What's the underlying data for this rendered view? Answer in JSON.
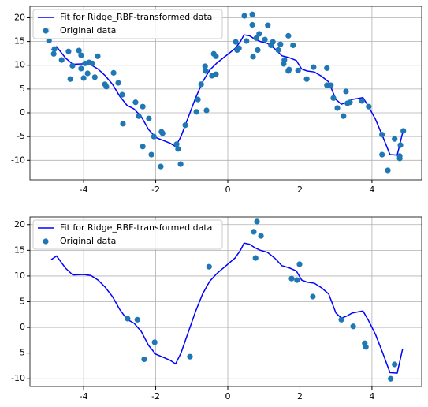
{
  "chart_data": [
    {
      "type": "scatter",
      "xlim": [
        -5.49,
        5.38
      ],
      "ylim": [
        -14.1,
        22.4
      ],
      "xticks": [
        -4,
        -2,
        0,
        2,
        4
      ],
      "yticks": [
        -10,
        -5,
        0,
        5,
        10,
        15,
        20
      ],
      "grid": true,
      "legend": "upper left",
      "series": [
        {
          "name": "Fit for Ridge_RBF-transformed data",
          "type": "line",
          "color": "#0000ff",
          "x": [
            -4.9,
            -4.75,
            -4.5,
            -4.3,
            -4,
            -3.8,
            -3.6,
            -3.4,
            -3.2,
            -3,
            -2.8,
            -2.6,
            -2.4,
            -2.2,
            -2,
            -1.8,
            -1.6,
            -1.45,
            -1.3,
            -1.1,
            -0.9,
            -0.7,
            -0.5,
            -0.3,
            0,
            0.2,
            0.35,
            0.45,
            0.6,
            0.75,
            0.9,
            1.1,
            1.3,
            1.5,
            1.7,
            1.9,
            2.05,
            2.2,
            2.4,
            2.6,
            2.8,
            3,
            3.15,
            3.3,
            3.45,
            3.6,
            3.75,
            3.9,
            4.1,
            4.3,
            4.5,
            4.7,
            4.85
          ],
          "values": [
            13.2,
            13.9,
            11.5,
            10.2,
            10.3,
            10.1,
            9.2,
            7.8,
            6,
            3.5,
            1.6,
            0.8,
            -0.8,
            -3.5,
            -5.2,
            -5.8,
            -6.4,
            -7.1,
            -5,
            -1,
            3,
            6.5,
            9,
            10.5,
            12.3,
            13.5,
            15,
            16.4,
            16.2,
            15.5,
            15,
            14.6,
            13.5,
            12,
            11.6,
            11,
            9.2,
            8.8,
            8.6,
            7.7,
            6.5,
            2.8,
            1.8,
            2.2,
            2.8,
            3,
            3.2,
            1.4,
            -1.4,
            -5,
            -8.8,
            -8.9,
            -4.2
          ]
        },
        {
          "name": "Original data",
          "type": "scatter",
          "color": "#1f77b4",
          "x": [
            -4.96,
            -5.0,
            -4.83,
            -4.81,
            -4.61,
            -4.42,
            -4.37,
            -4.31,
            -4.13,
            -4.07,
            -4.07,
            -4.0,
            -3.96,
            -3.89,
            -3.85,
            -3.76,
            -3.69,
            -3.61,
            -3.41,
            -3.37,
            -3.17,
            -3.04,
            -2.93,
            -2.91,
            -2.56,
            -2.47,
            -2.36,
            -2.36,
            -2.19,
            -2.12,
            -2.05,
            -1.86,
            -1.84,
            -1.81,
            -1.42,
            -1.38,
            -1.31,
            -1.18,
            -0.87,
            -0.83,
            -0.74,
            -0.63,
            -0.61,
            -0.59,
            -0.44,
            -0.39,
            -0.33,
            -0.33,
            0.22,
            0.26,
            0.31,
            0.46,
            0.52,
            0.68,
            0.68,
            0.7,
            0.79,
            0.83,
            0.87,
            1.03,
            1.11,
            1.2,
            1.25,
            1.4,
            1.46,
            1.55,
            1.57,
            1.68,
            1.68,
            1.7,
            1.81,
            1.95,
            2.19,
            2.38,
            2.75,
            2.75,
            2.86,
            2.93,
            3.04,
            3.21,
            3.28,
            3.32,
            3.39,
            3.72,
            3.91,
            4.28,
            4.28,
            4.44,
            4.63,
            4.77,
            4.77,
            4.79,
            4.87
          ],
          "values": [
            15.2,
            17.4,
            12.4,
            13.4,
            11.1,
            12.9,
            7.1,
            9.9,
            13.1,
            12.1,
            9.3,
            7.3,
            10.4,
            8.3,
            10.6,
            10.4,
            7.5,
            11.9,
            6.0,
            5.5,
            8.4,
            6.3,
            3.8,
            -2.3,
            2.2,
            -0.7,
            1.3,
            -7.1,
            -1.2,
            -8.8,
            -5.0,
            -11.3,
            -4.0,
            -4.3,
            -6.6,
            -7.6,
            -10.8,
            -2.6,
            0.2,
            2.8,
            6.0,
            9.8,
            8.8,
            0.5,
            7.8,
            12.4,
            11.9,
            8.1,
            14.9,
            13.2,
            13.6,
            20.4,
            15.1,
            20.7,
            18.5,
            11.8,
            15.7,
            13.2,
            16.6,
            15.4,
            18.4,
            14.2,
            14.9,
            13.2,
            14.4,
            10.3,
            11.1,
            16.2,
            8.8,
            9.1,
            14.2,
            8.9,
            7.1,
            9.6,
            9.4,
            5.8,
            5.8,
            3.1,
            1.0,
            -0.7,
            4.5,
            2.0,
            2.2,
            2.5,
            1.3,
            -4.6,
            -8.8,
            -12.1,
            -5.5,
            -9.1,
            -9.6,
            -6.8,
            -3.8
          ]
        }
      ]
    },
    {
      "type": "scatter",
      "xlim": [
        -5.49,
        5.38
      ],
      "ylim": [
        -11.5,
        21.5
      ],
      "xticks": [
        -4,
        -2,
        0,
        2,
        4
      ],
      "yticks": [
        -10,
        -5,
        0,
        5,
        10,
        15,
        20
      ],
      "grid": true,
      "legend": "upper left",
      "series": [
        {
          "name": "Fit for Ridge_RBF-transformed data",
          "type": "line",
          "color": "#0000ff",
          "x": [
            -4.9,
            -4.75,
            -4.5,
            -4.3,
            -4,
            -3.8,
            -3.6,
            -3.4,
            -3.2,
            -3,
            -2.8,
            -2.6,
            -2.4,
            -2.2,
            -2,
            -1.8,
            -1.6,
            -1.45,
            -1.3,
            -1.1,
            -0.9,
            -0.7,
            -0.5,
            -0.3,
            0,
            0.2,
            0.35,
            0.45,
            0.6,
            0.75,
            0.9,
            1.1,
            1.3,
            1.5,
            1.7,
            1.9,
            2.05,
            2.2,
            2.4,
            2.6,
            2.8,
            3,
            3.15,
            3.3,
            3.45,
            3.6,
            3.75,
            3.9,
            4.1,
            4.3,
            4.5,
            4.7,
            4.85
          ],
          "values": [
            13.2,
            13.9,
            11.5,
            10.2,
            10.3,
            10.1,
            9.2,
            7.8,
            6,
            3.5,
            1.6,
            0.8,
            -0.8,
            -3.5,
            -5.2,
            -5.8,
            -6.4,
            -7.1,
            -5,
            -1,
            3,
            6.5,
            9,
            10.5,
            12.3,
            13.5,
            15,
            16.4,
            16.2,
            15.5,
            15,
            14.6,
            13.5,
            12,
            11.6,
            11,
            9.2,
            8.8,
            8.6,
            7.7,
            6.5,
            2.8,
            1.8,
            2.2,
            2.8,
            3,
            3.2,
            1.4,
            -1.4,
            -5,
            -8.8,
            -8.9,
            -4.2
          ]
        },
        {
          "name": "Original data",
          "type": "scatter",
          "color": "#1f77b4",
          "x": [
            -2.78,
            -2.51,
            -2.32,
            -2.03,
            -1.05,
            -0.52,
            0.72,
            0.77,
            0.81,
            0.92,
            1.77,
            1.92,
            1.99,
            2.36,
            3.15,
            3.48,
            3.8,
            3.83,
            4.52,
            4.63
          ],
          "values": [
            1.7,
            1.5,
            -6.2,
            -2.9,
            -5.7,
            11.8,
            18.6,
            13.5,
            20.6,
            17.8,
            9.5,
            9.2,
            12.3,
            6.0,
            1.5,
            0.2,
            -3.1,
            -3.8,
            -10.0,
            -7.2
          ]
        }
      ]
    }
  ]
}
